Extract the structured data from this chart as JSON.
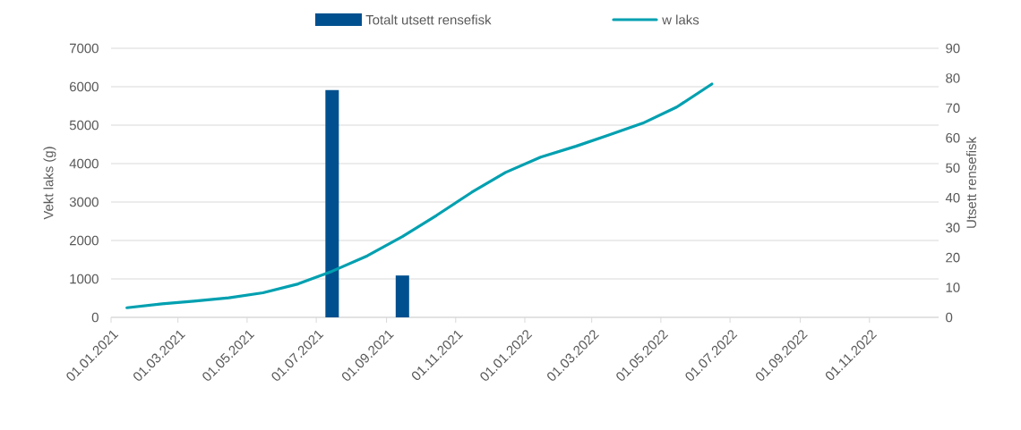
{
  "chart_data": {
    "type": "line",
    "x": [
      "2021-01-15",
      "2021-02-15",
      "2021-03-15",
      "2021-04-15",
      "2021-05-15",
      "2021-06-15",
      "2021-07-15",
      "2021-08-15",
      "2021-09-15",
      "2021-10-15",
      "2021-11-15",
      "2021-12-15",
      "2022-01-15",
      "2022-02-15",
      "2022-03-15",
      "2022-04-15",
      "2022-05-15",
      "2022-06-15"
    ],
    "series": [
      {
        "name": "Totalt utsett rensefisk",
        "type": "bar",
        "axis": "y2",
        "color": "#00508f",
        "x": [
          "2021-07-15",
          "2021-09-15"
        ],
        "values": [
          76,
          14
        ]
      },
      {
        "name": "w laks",
        "color": "#00a0b0",
        "values": [
          250,
          350,
          420,
          510,
          640,
          870,
          1200,
          1600,
          2100,
          2650,
          3250,
          3770,
          4170,
          4450,
          4730,
          5050,
          5470,
          6070
        ]
      }
    ],
    "xlim": [
      "2021-01-01",
      "2023-01-01"
    ],
    "xticks": [
      {
        "value": "2021-01-01",
        "label": "01.01.2021"
      },
      {
        "value": "2021-03-01",
        "label": "01.03.2021"
      },
      {
        "value": "2021-05-01",
        "label": "01.05.2021"
      },
      {
        "value": "2021-07-01",
        "label": "01.07.2021"
      },
      {
        "value": "2021-09-01",
        "label": "01.09.2021"
      },
      {
        "value": "2021-11-01",
        "label": "01.11.2021"
      },
      {
        "value": "2022-01-01",
        "label": "01.01.2022"
      },
      {
        "value": "2022-03-01",
        "label": "01.03.2022"
      },
      {
        "value": "2022-05-01",
        "label": "01.05.2022"
      },
      {
        "value": "2022-07-01",
        "label": "01.07.2022"
      },
      {
        "value": "2022-09-01",
        "label": "01.09.2022"
      },
      {
        "value": "2022-11-01",
        "label": "01.11.2022"
      }
    ],
    "ylim": [
      0,
      7000
    ],
    "yticks": [
      0,
      1000,
      2000,
      3000,
      4000,
      5000,
      6000,
      7000
    ],
    "y2lim": [
      0,
      90
    ],
    "y2ticks": [
      0,
      10,
      20,
      30,
      40,
      50,
      60,
      70,
      80,
      90
    ],
    "ylabel": "Vekt laks (g)",
    "y2label": "Utsett rensefisk",
    "grid": "y",
    "legend": "top",
    "marker": "none",
    "line_style": "solid"
  }
}
